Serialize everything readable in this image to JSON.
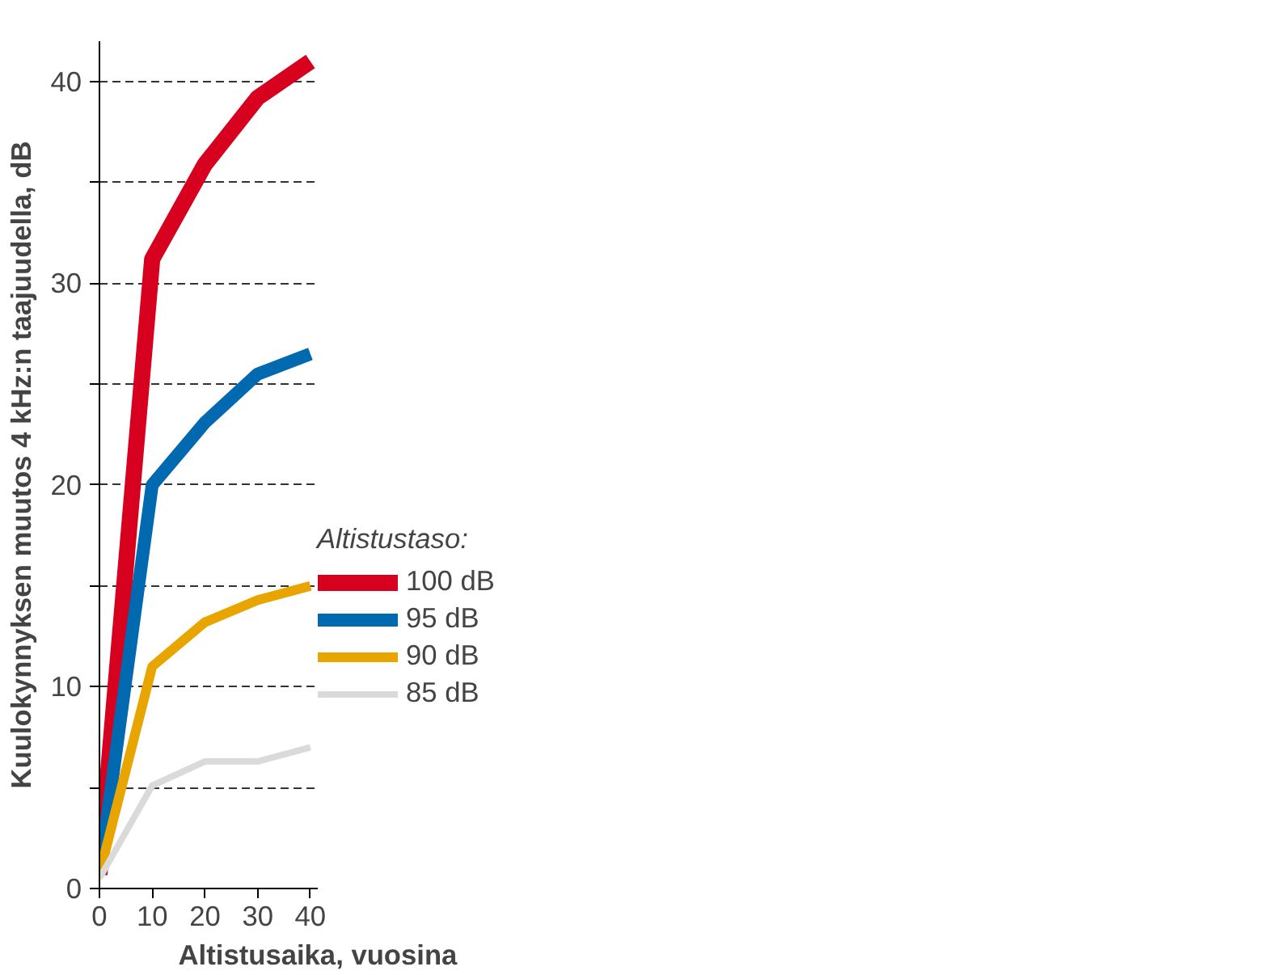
{
  "chart_data": {
    "type": "line",
    "xlabel": "Altistusaika, vuosina",
    "ylabel": "Kuulokynnyksen muutos 4 kHz:n taajuudella, dB",
    "legend_title": "Altistustaso:",
    "x": [
      0,
      10,
      20,
      30,
      40
    ],
    "series": [
      {
        "name": "100 dB",
        "color": "#d7001e",
        "values": [
          0.7,
          31.2,
          35.9,
          39.2,
          41.0
        ]
      },
      {
        "name": "95 dB",
        "color": "#0069b0",
        "values": [
          0.7,
          20.0,
          23.1,
          25.5,
          26.5
        ]
      },
      {
        "name": "90 dB",
        "color": "#e8a500",
        "values": [
          0.7,
          11.0,
          13.2,
          14.3,
          15.0
        ]
      },
      {
        "name": "85 dB",
        "color": "#dadada",
        "values": [
          0.5,
          5.1,
          6.3,
          6.3,
          7.0
        ]
      }
    ],
    "xlim": [
      0,
      41.4
    ],
    "ylim": [
      0,
      42
    ],
    "xticks": [
      0,
      10,
      20,
      30,
      40
    ],
    "yticks": [
      0,
      {
        "value": 5,
        "label": null
      },
      10,
      {
        "value": 15,
        "label": null
      },
      20,
      {
        "value": 25,
        "label": null
      },
      30,
      {
        "value": 35,
        "label": null
      },
      40
    ],
    "grid": "y",
    "legend": "right",
    "marker": "none",
    "line_style": "solid"
  }
}
